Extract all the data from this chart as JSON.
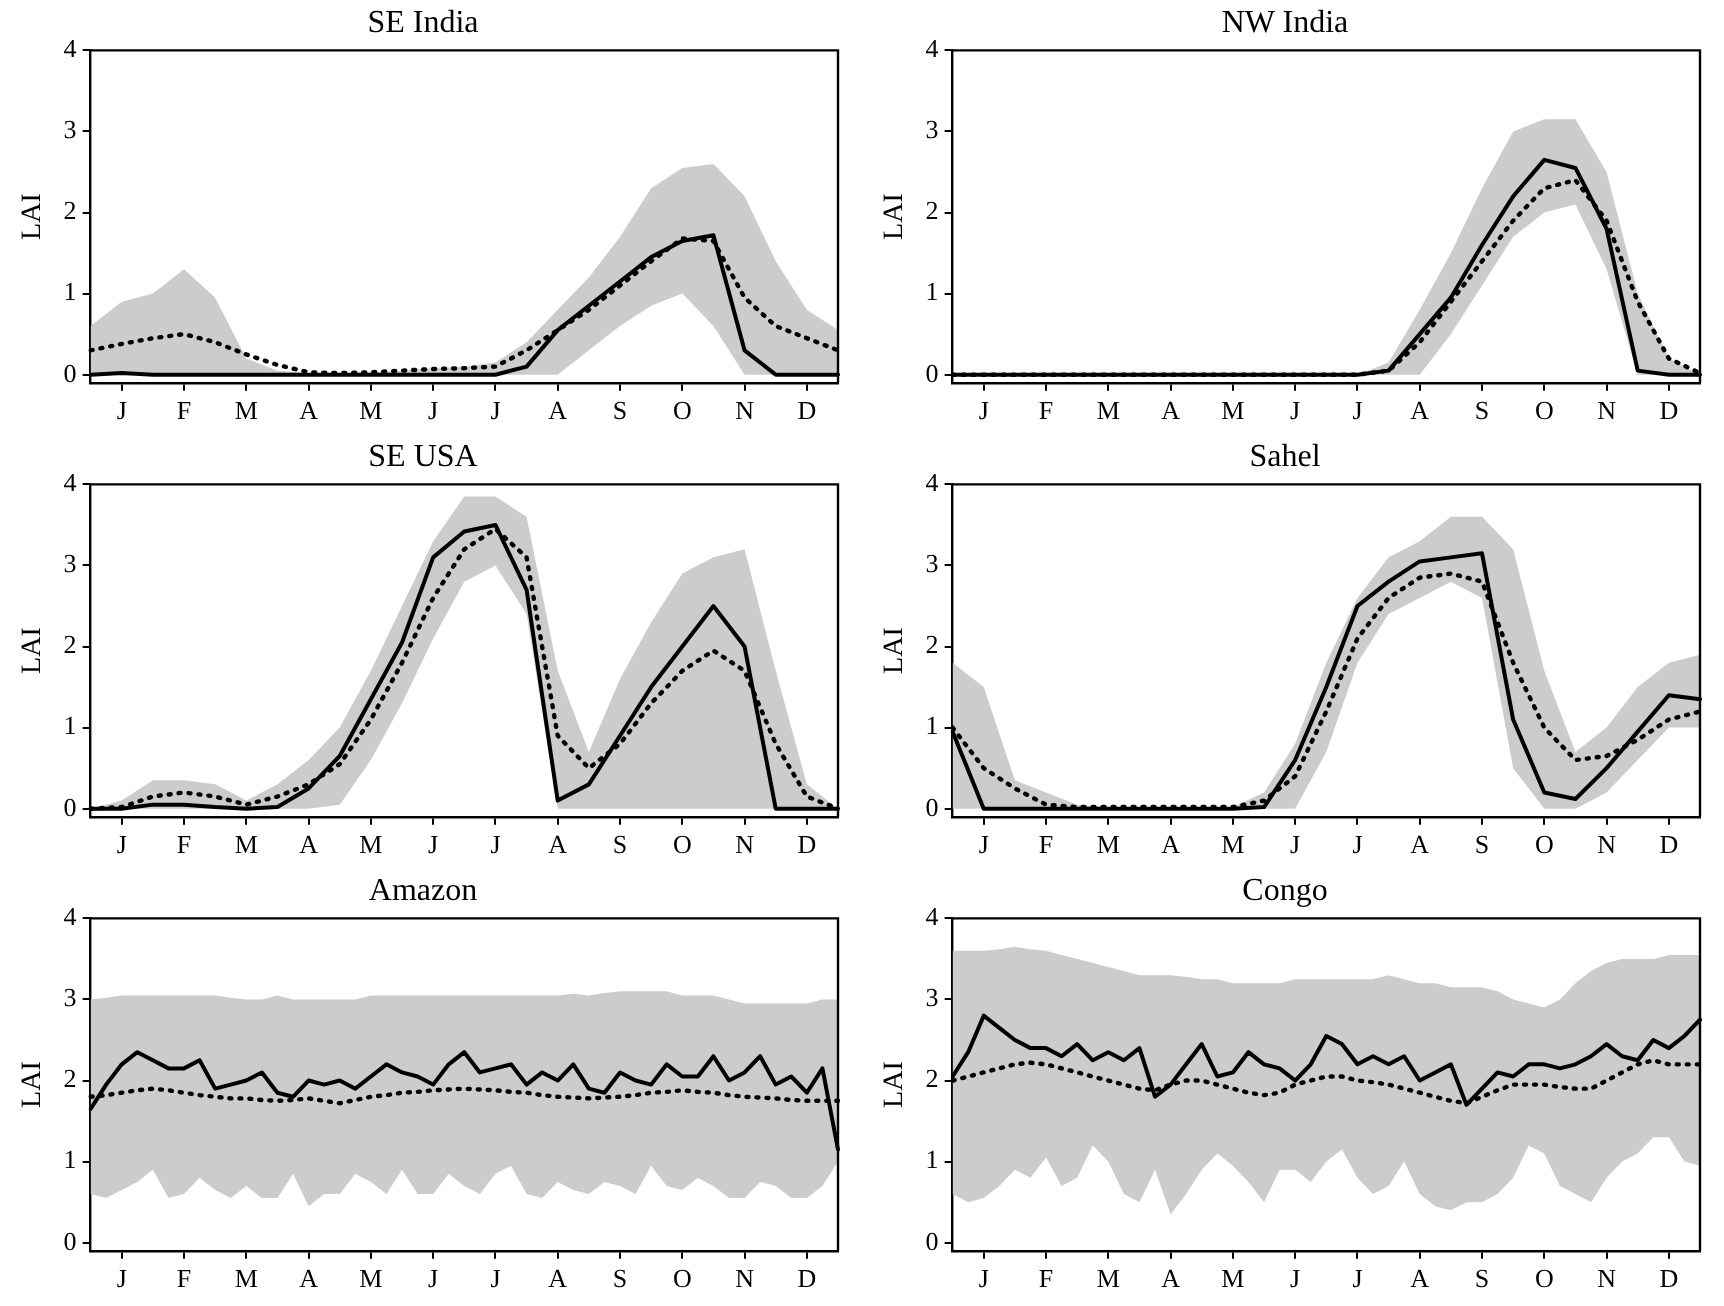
{
  "chart_data": [
    {
      "type": "line",
      "title": "SE India",
      "ylabel": "LAI",
      "ylim": [
        -0.1,
        4
      ],
      "yticks": [
        0,
        1,
        2,
        3,
        4
      ],
      "grid": false,
      "legend": false,
      "categories": [
        null,
        "J",
        null,
        "F",
        null,
        "M",
        null,
        "A",
        null,
        "M",
        null,
        "J",
        null,
        "J",
        null,
        "A",
        null,
        "S",
        null,
        "O",
        null,
        "N",
        null,
        "D",
        null
      ],
      "series": [
        {
          "color": "#000000",
          "line_style": "solid",
          "values": [
            0,
            0.02,
            0,
            0,
            0,
            0,
            0,
            0,
            0,
            0,
            0,
            0,
            0,
            0,
            0.1,
            0.55,
            0.85,
            1.15,
            1.45,
            1.65,
            1.72,
            0.3,
            0,
            0,
            0
          ]
        },
        {
          "color": "#000000",
          "line_style": "dotted",
          "values": [
            0.3,
            0.38,
            0.45,
            0.5,
            0.4,
            0.25,
            0.12,
            0.03,
            0.02,
            0.03,
            0.05,
            0.07,
            0.08,
            0.1,
            0.3,
            0.55,
            0.8,
            1.1,
            1.4,
            1.68,
            1.65,
            0.95,
            0.6,
            0.45,
            0.3
          ],
          "lower": [
            0,
            0,
            0,
            0,
            0,
            0,
            0,
            0,
            0,
            0,
            0,
            0,
            0,
            0,
            0,
            0,
            0.3,
            0.6,
            0.85,
            1.0,
            0.6,
            0,
            0,
            0,
            0
          ],
          "upper": [
            0.6,
            0.9,
            1.0,
            1.3,
            0.95,
            0.2,
            0.05,
            0.02,
            0.02,
            0.03,
            0.05,
            0.08,
            0.1,
            0.15,
            0.4,
            0.8,
            1.2,
            1.7,
            2.3,
            2.55,
            2.6,
            2.2,
            1.4,
            0.8,
            0.55
          ]
        }
      ]
    },
    {
      "type": "line",
      "title": "NW India",
      "ylabel": "LAI",
      "ylim": [
        -0.1,
        4
      ],
      "yticks": [
        0,
        1,
        2,
        3,
        4
      ],
      "grid": false,
      "legend": false,
      "categories": [
        null,
        "J",
        null,
        "F",
        null,
        "M",
        null,
        "A",
        null,
        "M",
        null,
        "J",
        null,
        "J",
        null,
        "A",
        null,
        "S",
        null,
        "O",
        null,
        "N",
        null,
        "D",
        null
      ],
      "series": [
        {
          "color": "#000000",
          "line_style": "solid",
          "values": [
            0,
            0,
            0,
            0,
            0,
            0,
            0,
            0,
            0,
            0,
            0,
            0,
            0,
            0,
            0.05,
            0.5,
            0.95,
            1.6,
            2.2,
            2.65,
            2.55,
            1.8,
            0.05,
            0,
            0
          ]
        },
        {
          "color": "#000000",
          "line_style": "dotted",
          "values": [
            0,
            0,
            0,
            0,
            0,
            0,
            0,
            0,
            0,
            0,
            0,
            0,
            0,
            0,
            0.05,
            0.4,
            0.9,
            1.4,
            1.9,
            2.3,
            2.4,
            1.9,
            0.9,
            0.2,
            0.02
          ],
          "lower": [
            0,
            0,
            0,
            0,
            0,
            0,
            0,
            0,
            0,
            0,
            0,
            0,
            0,
            0,
            0,
            0,
            0.5,
            1.1,
            1.7,
            2.0,
            2.1,
            1.3,
            0,
            0,
            0
          ],
          "upper": [
            0,
            0,
            0,
            0,
            0,
            0,
            0,
            0,
            0,
            0,
            0,
            0,
            0,
            0,
            0.15,
            0.8,
            1.5,
            2.3,
            3.0,
            3.15,
            3.15,
            2.5,
            1.0,
            0.2,
            0
          ]
        }
      ]
    },
    {
      "type": "line",
      "title": "SE USA",
      "ylabel": "LAI",
      "ylim": [
        -0.1,
        4
      ],
      "yticks": [
        0,
        1,
        2,
        3,
        4
      ],
      "grid": false,
      "legend": false,
      "categories": [
        null,
        "J",
        null,
        "F",
        null,
        "M",
        null,
        "A",
        null,
        "M",
        null,
        "J",
        null,
        "J",
        null,
        "A",
        null,
        "S",
        null,
        "O",
        null,
        "N",
        null,
        "D",
        null
      ],
      "series": [
        {
          "color": "#000000",
          "line_style": "solid",
          "values": [
            0,
            0,
            0.05,
            0.05,
            0.02,
            0,
            0.02,
            0.25,
            0.65,
            1.35,
            2.05,
            3.1,
            3.42,
            3.5,
            2.7,
            0.1,
            0.3,
            0.9,
            1.5,
            2.0,
            2.5,
            2.0,
            0,
            0,
            0
          ]
        },
        {
          "color": "#000000",
          "line_style": "dotted",
          "values": [
            0,
            0.02,
            0.15,
            0.2,
            0.15,
            0.05,
            0.15,
            0.3,
            0.55,
            1.1,
            1.8,
            2.6,
            3.2,
            3.45,
            3.1,
            0.9,
            0.5,
            0.8,
            1.3,
            1.7,
            1.95,
            1.7,
            0.8,
            0.15,
            0
          ],
          "lower": [
            0,
            0,
            0,
            0,
            0,
            0,
            0,
            0,
            0.05,
            0.6,
            1.3,
            2.1,
            2.8,
            3.0,
            2.4,
            0,
            0,
            0,
            0,
            0,
            0,
            0,
            0,
            0,
            0
          ],
          "upper": [
            0,
            0.1,
            0.35,
            0.35,
            0.3,
            0.1,
            0.3,
            0.6,
            1.0,
            1.7,
            2.5,
            3.3,
            3.85,
            3.85,
            3.6,
            1.7,
            0.7,
            1.6,
            2.3,
            2.9,
            3.1,
            3.2,
            1.7,
            0.3,
            0
          ]
        }
      ]
    },
    {
      "type": "line",
      "title": "Sahel",
      "ylabel": "LAI",
      "ylim": [
        -0.1,
        4
      ],
      "yticks": [
        0,
        1,
        2,
        3,
        4
      ],
      "grid": false,
      "legend": false,
      "categories": [
        null,
        "J",
        null,
        "F",
        null,
        "M",
        null,
        "A",
        null,
        "M",
        null,
        "J",
        null,
        "J",
        null,
        "A",
        null,
        "S",
        null,
        "O",
        null,
        "N",
        null,
        "D",
        null
      ],
      "series": [
        {
          "color": "#000000",
          "line_style": "solid",
          "values": [
            0.95,
            0,
            0,
            0,
            0,
            0,
            0,
            0,
            0,
            0,
            0.02,
            0.6,
            1.5,
            2.5,
            2.8,
            3.05,
            3.1,
            3.15,
            1.1,
            0.2,
            0.12,
            0.5,
            0.95,
            1.4,
            1.35
          ]
        },
        {
          "color": "#000000",
          "line_style": "dotted",
          "values": [
            1.0,
            0.5,
            0.25,
            0.05,
            0.02,
            0.02,
            0.02,
            0.02,
            0.02,
            0.02,
            0.1,
            0.4,
            1.2,
            2.1,
            2.6,
            2.85,
            2.9,
            2.8,
            1.8,
            1.0,
            0.6,
            0.65,
            0.85,
            1.1,
            1.2
          ],
          "lower": [
            0,
            0,
            0,
            0,
            0,
            0,
            0,
            0,
            0,
            0,
            0,
            0,
            0.7,
            1.8,
            2.4,
            2.6,
            2.8,
            2.6,
            0.5,
            0,
            0,
            0.2,
            0.6,
            1.0,
            1.0
          ],
          "upper": [
            1.8,
            1.5,
            0.35,
            0.2,
            0.05,
            0.02,
            0.02,
            0.02,
            0.02,
            0.02,
            0.2,
            0.8,
            1.8,
            2.6,
            3.1,
            3.3,
            3.6,
            3.6,
            3.2,
            1.7,
            0.7,
            1.0,
            1.5,
            1.8,
            1.9
          ]
        }
      ]
    },
    {
      "type": "line",
      "title": "Amazon",
      "ylabel": "LAI",
      "ylim": [
        -0.1,
        4
      ],
      "yticks": [
        0,
        1,
        2,
        3,
        4
      ],
      "grid": false,
      "legend": false,
      "categories": [
        null,
        null,
        "J",
        null,
        null,
        null,
        "F",
        null,
        null,
        null,
        "M",
        null,
        null,
        null,
        "A",
        null,
        null,
        null,
        "M",
        null,
        null,
        null,
        "J",
        null,
        null,
        null,
        "J",
        null,
        null,
        null,
        "A",
        null,
        null,
        null,
        "S",
        null,
        null,
        null,
        "O",
        null,
        null,
        null,
        "N",
        null,
        null,
        null,
        "D",
        null,
        null
      ],
      "series": [
        {
          "color": "#000000",
          "line_style": "solid",
          "values": [
            1.65,
            1.95,
            2.2,
            2.35,
            2.25,
            2.15,
            2.15,
            2.25,
            1.9,
            1.95,
            2.0,
            2.1,
            1.85,
            1.8,
            2.0,
            1.95,
            2.0,
            1.9,
            2.05,
            2.2,
            2.1,
            2.05,
            1.95,
            2.2,
            2.35,
            2.1,
            2.15,
            2.2,
            1.95,
            2.1,
            2.0,
            2.2,
            1.9,
            1.85,
            2.1,
            2.0,
            1.95,
            2.2,
            2.05,
            2.05,
            2.3,
            2.0,
            2.1,
            2.3,
            1.95,
            2.05,
            1.85,
            2.15,
            1.15
          ]
        },
        {
          "color": "#000000",
          "line_style": "dotted",
          "values": [
            1.8,
            1.82,
            1.85,
            1.88,
            1.9,
            1.88,
            1.85,
            1.82,
            1.8,
            1.78,
            1.78,
            1.76,
            1.75,
            1.76,
            1.78,
            1.75,
            1.72,
            1.76,
            1.8,
            1.82,
            1.85,
            1.86,
            1.88,
            1.89,
            1.9,
            1.89,
            1.88,
            1.86,
            1.85,
            1.82,
            1.8,
            1.79,
            1.78,
            1.79,
            1.8,
            1.82,
            1.85,
            1.86,
            1.88,
            1.86,
            1.85,
            1.82,
            1.8,
            1.79,
            1.78,
            1.76,
            1.75,
            1.75,
            1.75
          ],
          "lower": [
            0.6,
            0.55,
            0.65,
            0.75,
            0.9,
            0.55,
            0.6,
            0.8,
            0.65,
            0.55,
            0.7,
            0.55,
            0.55,
            0.85,
            0.45,
            0.6,
            0.6,
            0.85,
            0.75,
            0.6,
            0.9,
            0.6,
            0.6,
            0.85,
            0.7,
            0.6,
            0.85,
            0.95,
            0.6,
            0.55,
            0.75,
            0.65,
            0.6,
            0.75,
            0.7,
            0.6,
            0.95,
            0.7,
            0.65,
            0.8,
            0.7,
            0.55,
            0.55,
            0.75,
            0.7,
            0.55,
            0.55,
            0.7,
            1.0
          ],
          "upper": [
            3.0,
            3.02,
            3.05,
            3.05,
            3.05,
            3.05,
            3.05,
            3.05,
            3.05,
            3.02,
            3.0,
            3.0,
            3.05,
            3.0,
            3.0,
            3.0,
            3.0,
            3.0,
            3.05,
            3.05,
            3.05,
            3.05,
            3.05,
            3.05,
            3.05,
            3.05,
            3.05,
            3.05,
            3.05,
            3.05,
            3.05,
            3.07,
            3.05,
            3.08,
            3.1,
            3.1,
            3.1,
            3.1,
            3.05,
            3.05,
            3.05,
            3.0,
            2.95,
            2.95,
            2.95,
            2.95,
            2.95,
            3.0,
            3.0
          ]
        }
      ]
    },
    {
      "type": "line",
      "title": "Congo",
      "ylabel": "LAI",
      "ylim": [
        -0.1,
        4
      ],
      "yticks": [
        0,
        1,
        2,
        3,
        4
      ],
      "grid": false,
      "legend": false,
      "categories": [
        null,
        null,
        "J",
        null,
        null,
        null,
        "F",
        null,
        null,
        null,
        "M",
        null,
        null,
        null,
        "A",
        null,
        null,
        null,
        "M",
        null,
        null,
        null,
        "J",
        null,
        null,
        null,
        "J",
        null,
        null,
        null,
        "A",
        null,
        null,
        null,
        "S",
        null,
        null,
        null,
        "O",
        null,
        null,
        null,
        "N",
        null,
        null,
        null,
        "D",
        null,
        null
      ],
      "series": [
        {
          "color": "#000000",
          "line_style": "solid",
          "values": [
            2.05,
            2.35,
            2.8,
            2.65,
            2.5,
            2.4,
            2.4,
            2.3,
            2.45,
            2.25,
            2.35,
            2.25,
            2.4,
            1.8,
            1.95,
            2.2,
            2.45,
            2.05,
            2.1,
            2.35,
            2.2,
            2.15,
            2.0,
            2.2,
            2.55,
            2.45,
            2.2,
            2.3,
            2.2,
            2.3,
            2.0,
            2.1,
            2.2,
            1.7,
            1.9,
            2.1,
            2.05,
            2.2,
            2.2,
            2.15,
            2.2,
            2.3,
            2.45,
            2.3,
            2.25,
            2.5,
            2.4,
            2.55,
            2.75
          ]
        },
        {
          "color": "#000000",
          "line_style": "dotted",
          "values": [
            2.0,
            2.05,
            2.1,
            2.15,
            2.2,
            2.22,
            2.2,
            2.15,
            2.1,
            2.05,
            2.0,
            1.95,
            1.9,
            1.88,
            1.95,
            2.0,
            2.0,
            1.95,
            1.9,
            1.85,
            1.82,
            1.85,
            1.95,
            2.0,
            2.05,
            2.05,
            2.0,
            1.98,
            1.95,
            1.9,
            1.85,
            1.8,
            1.75,
            1.72,
            1.8,
            1.88,
            1.95,
            1.95,
            1.95,
            1.92,
            1.9,
            1.9,
            2.0,
            2.1,
            2.2,
            2.25,
            2.2,
            2.2,
            2.2
          ],
          "lower": [
            0.6,
            0.5,
            0.55,
            0.7,
            0.9,
            0.8,
            1.05,
            0.7,
            0.8,
            1.2,
            1.0,
            0.6,
            0.5,
            0.9,
            0.35,
            0.6,
            0.9,
            1.1,
            0.95,
            0.75,
            0.5,
            0.9,
            0.9,
            0.75,
            1.0,
            1.15,
            0.8,
            0.6,
            0.7,
            1.0,
            0.6,
            0.45,
            0.4,
            0.5,
            0.5,
            0.6,
            0.8,
            1.2,
            1.1,
            0.7,
            0.6,
            0.5,
            0.8,
            1.0,
            1.1,
            1.3,
            1.3,
            1.0,
            0.95
          ],
          "upper": [
            3.6,
            3.6,
            3.6,
            3.62,
            3.65,
            3.62,
            3.6,
            3.55,
            3.5,
            3.45,
            3.4,
            3.35,
            3.3,
            3.3,
            3.3,
            3.28,
            3.25,
            3.25,
            3.2,
            3.2,
            3.2,
            3.2,
            3.25,
            3.25,
            3.25,
            3.25,
            3.25,
            3.25,
            3.3,
            3.25,
            3.2,
            3.2,
            3.15,
            3.15,
            3.15,
            3.1,
            3.0,
            2.95,
            2.9,
            3.0,
            3.2,
            3.35,
            3.45,
            3.5,
            3.5,
            3.5,
            3.55,
            3.55,
            3.55
          ]
        }
      ]
    }
  ]
}
